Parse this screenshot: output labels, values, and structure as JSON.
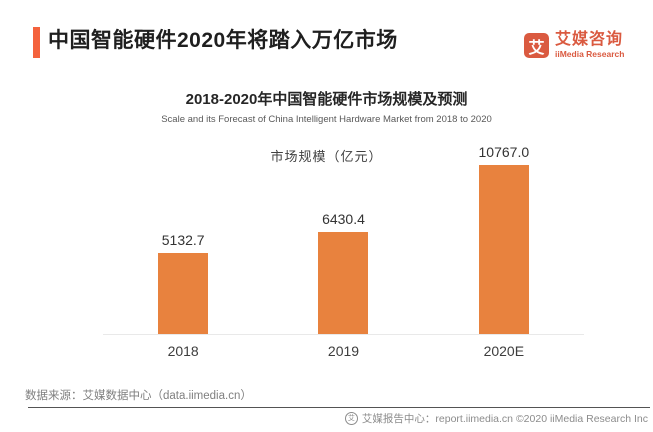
{
  "header": {
    "title": "中国智能硬件2020年将踏入万亿市场",
    "logo": {
      "mark": "艾",
      "name_cn": "艾媒咨询",
      "name_en": "iiMedia Research"
    }
  },
  "chart_data": {
    "type": "bar",
    "title": "2018-2020年中国智能硬件市场规模及预测",
    "subtitle": "Scale and its Forecast of China Intelligent Hardware Market from 2018 to 2020",
    "series_label": "市场规模（亿元）",
    "categories": [
      "2018",
      "2019",
      "2020E"
    ],
    "values": [
      5132.7,
      6430.4,
      10767.0
    ],
    "value_labels": [
      "5132.7",
      "6430.4",
      "10767.0"
    ],
    "ylim": [
      0,
      10767
    ],
    "grid": false,
    "legend_position": "top-center-text-only",
    "bar_color": "#E8823E"
  },
  "footer": {
    "source": "数据来源：艾媒数据中心（data.iimedia.cn）",
    "credit_icon": "艾",
    "credit": "艾媒报告中心：report.iimedia.cn  ©2020  iiMedia Research Inc"
  },
  "colors": {
    "accent": "#F4623D",
    "brand": "#DA5A40",
    "bar": "#E8823E",
    "axis_line": "#E9E9E9",
    "footer_line": "#545454"
  }
}
